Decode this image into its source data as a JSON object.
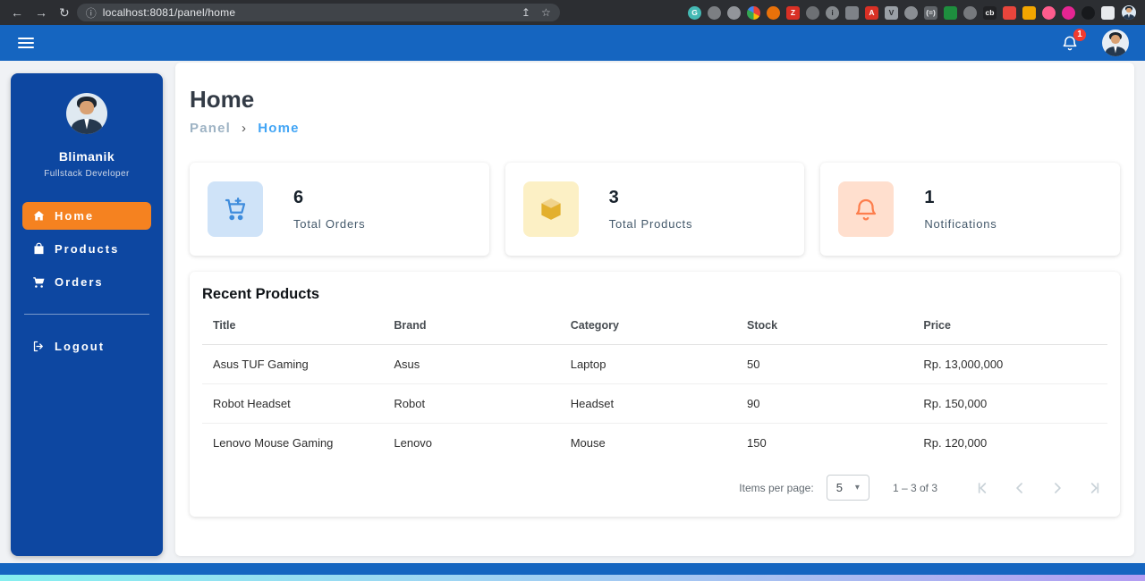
{
  "browser": {
    "url": "localhost:8081/panel/home",
    "extensions": [
      {
        "glyph": "G",
        "bg": "#44b9b4",
        "fg": "#ffffff",
        "shape": "circle"
      },
      {
        "glyph": "",
        "bg": "#7c7f83",
        "fg": "#ffffff",
        "shape": "circle"
      },
      {
        "glyph": "",
        "bg": "#92959a",
        "fg": "#ffffff",
        "shape": "circle"
      },
      {
        "glyph": "",
        "bg": "chrome",
        "fg": "#ffffff",
        "shape": "circle"
      },
      {
        "glyph": "",
        "bg": "#e8710a",
        "fg": "#ffffff",
        "shape": "circle"
      },
      {
        "glyph": "Z",
        "bg": "#d93025",
        "fg": "#ffffff",
        "shape": "square"
      },
      {
        "glyph": "",
        "bg": "#6d7074",
        "fg": "#ffffff",
        "shape": "circle"
      },
      {
        "glyph": "i",
        "bg": "#85898d",
        "fg": "#2a2c2f",
        "shape": "circle"
      },
      {
        "glyph": "",
        "bg": "#7e8288",
        "fg": "#ffffff",
        "shape": "square"
      },
      {
        "glyph": "A",
        "bg": "#d93025",
        "fg": "#ffffff",
        "shape": "square"
      },
      {
        "glyph": "V",
        "bg": "#9aa0a6",
        "fg": "#2a2c2f",
        "shape": "square"
      },
      {
        "glyph": "",
        "bg": "#8a8e93",
        "fg": "#ffffff",
        "shape": "circle"
      },
      {
        "glyph": "(=)",
        "bg": "#5f6368",
        "fg": "#e8eaed",
        "shape": "square"
      },
      {
        "glyph": "",
        "bg": "#1e8e3e",
        "fg": "#ffffff",
        "shape": "square"
      },
      {
        "glyph": "",
        "bg": "#76797d",
        "fg": "#ffffff",
        "shape": "circle"
      },
      {
        "glyph": "cb",
        "bg": "#202124",
        "fg": "#ffffff",
        "shape": "square"
      },
      {
        "glyph": "",
        "bg": "#e8453c",
        "fg": "#ffffff",
        "shape": "square"
      },
      {
        "glyph": "",
        "bg": "#f2a600",
        "fg": "#ffffff",
        "shape": "square"
      },
      {
        "glyph": "",
        "bg": "#ff5c8d",
        "fg": "#ffffff",
        "shape": "circle"
      },
      {
        "glyph": "",
        "bg": "#e52592",
        "fg": "#ffffff",
        "shape": "circle"
      },
      {
        "glyph": "",
        "bg": "#17191c",
        "fg": "#ffffff",
        "shape": "circle"
      },
      {
        "glyph": "",
        "bg": "#e8eaed",
        "fg": "#202124",
        "shape": "square"
      }
    ]
  },
  "icons": {
    "back": "←",
    "forward": "→",
    "reload": "↻",
    "info": "ⓘ",
    "share": "↥",
    "star": "☆",
    "caret": "▾",
    "chevron": "›"
  },
  "topbar": {
    "badge": "1"
  },
  "sidebar": {
    "name": "Blimanik",
    "role": "Fullstack Developer",
    "menu": [
      {
        "label": "Home",
        "active": true
      },
      {
        "label": "Products",
        "active": false
      },
      {
        "label": "Orders",
        "active": false
      }
    ],
    "logout": "Logout"
  },
  "main": {
    "title": "Home",
    "breadcrumb": {
      "parent": "Panel",
      "current": "Home"
    },
    "stats": [
      {
        "value": "6",
        "label": "Total Orders"
      },
      {
        "value": "3",
        "label": "Total Products"
      },
      {
        "value": "1",
        "label": "Notifications"
      }
    ],
    "products": {
      "title": "Recent Products",
      "columns": [
        "Title",
        "Brand",
        "Category",
        "Stock",
        "Price"
      ],
      "rows": [
        [
          "Asus TUF Gaming",
          "Asus",
          "Laptop",
          "50",
          "Rp. 13,000,000"
        ],
        [
          "Robot Headset",
          "Robot",
          "Headset",
          "90",
          "Rp. 150,000"
        ],
        [
          "Lenovo Mouse Gaming",
          "Lenovo",
          "Mouse",
          "150",
          "Rp. 120,000"
        ]
      ],
      "paginator": {
        "items_per_page_label": "Items per page:",
        "page_size": "5",
        "range": "1 – 3 of 3"
      }
    }
  },
  "colors": {
    "topbar_blue": "#1565c0",
    "sidebar_blue": "#0d47a1",
    "active_item_orange": "#f58220",
    "breadcrumb_link": "#42a5f5",
    "footer_gradient": [
      "#86efef",
      "#9fd5f3",
      "#b39df2"
    ]
  }
}
